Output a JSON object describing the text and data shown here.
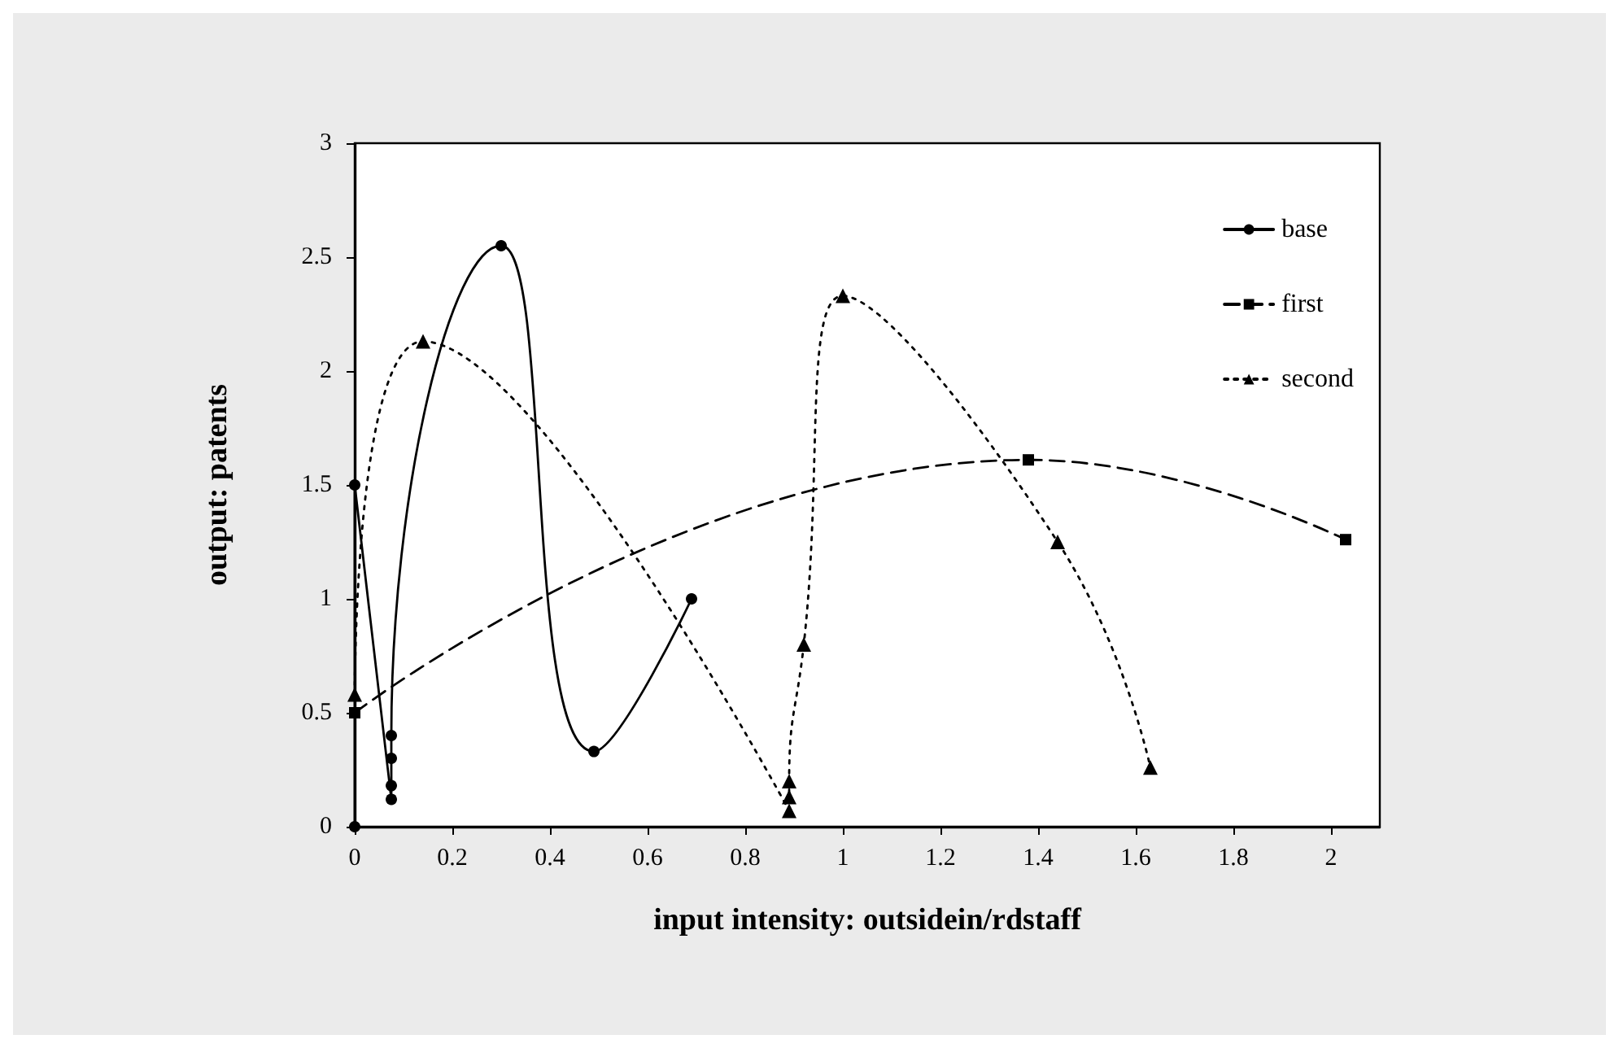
{
  "chart_data": {
    "type": "line",
    "xlabel": "input intensity: outsidein/rdstaff",
    "ylabel": "output: patents",
    "xlim": [
      0,
      2.1
    ],
    "xticks": [
      0,
      0.2,
      0.4,
      0.6,
      0.8,
      1,
      1.2,
      1.4,
      1.6,
      1.8,
      2
    ],
    "ylim": [
      0,
      3
    ],
    "yticks": [
      0,
      0.5,
      1,
      1.5,
      2,
      2.5,
      3
    ],
    "grid": false,
    "legend": "top right",
    "series": [
      {
        "name": "base",
        "color": "#000000",
        "marker": "circle",
        "line_style": "solid",
        "x": [
          0,
          0,
          0.075,
          0.075,
          0.075,
          0.075,
          0.3,
          0.49,
          0.69
        ],
        "values": [
          0,
          1.5,
          0.12,
          0.18,
          0.3,
          0.4,
          2.55,
          0.33,
          1.0
        ]
      },
      {
        "name": "first",
        "color": "#000000",
        "marker": "square",
        "line_style": "dashed",
        "x": [
          0,
          1.38,
          2.03
        ],
        "values": [
          0.5,
          1.61,
          1.26
        ]
      },
      {
        "name": "second",
        "color": "#000000",
        "marker": "triangle",
        "line_style": "dotted",
        "x": [
          0,
          0.14,
          0.89,
          0.89,
          0.89,
          0.92,
          1.0,
          1.44,
          1.63
        ],
        "values": [
          0.58,
          2.13,
          0.07,
          0.13,
          0.2,
          0.8,
          2.33,
          1.25,
          0.26
        ]
      }
    ]
  }
}
